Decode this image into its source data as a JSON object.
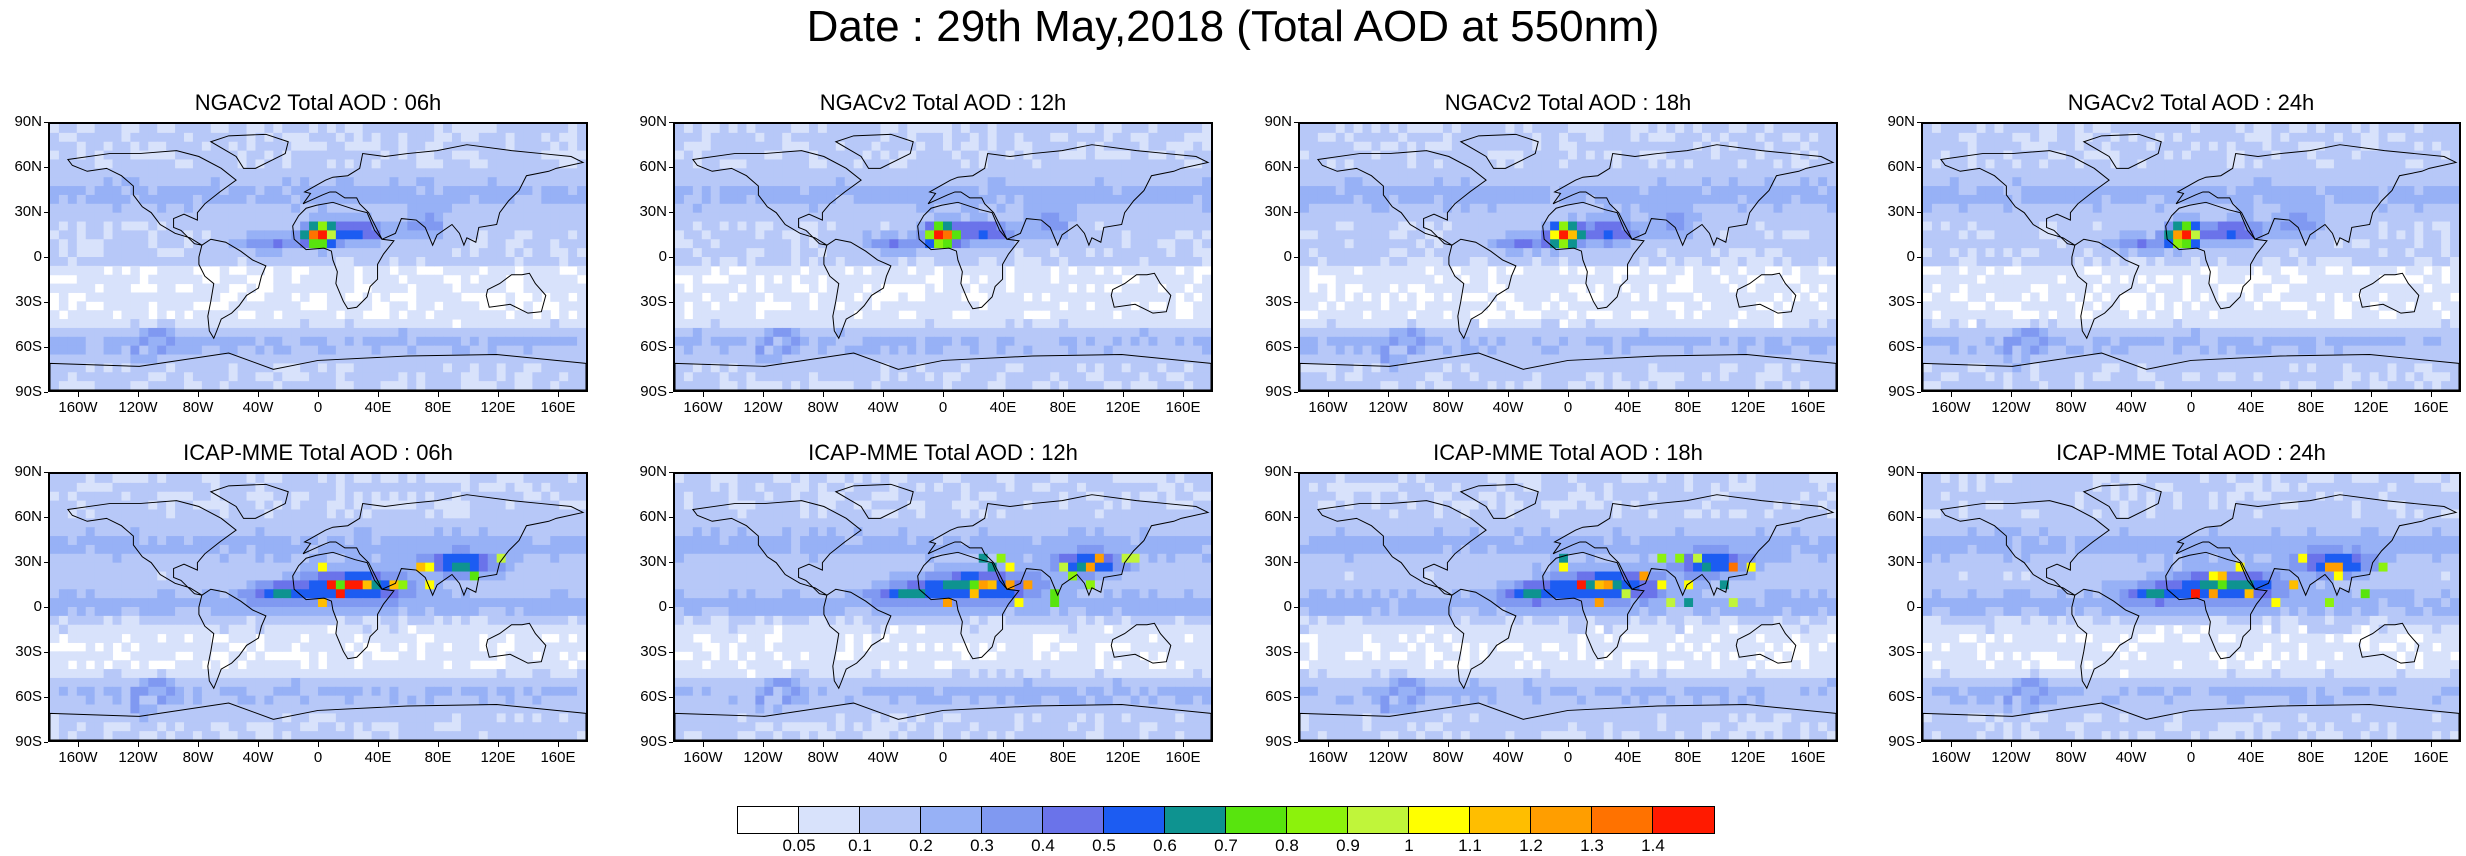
{
  "title": "Date : 29th May,2018 (Total AOD at 550nm)",
  "y_ticks": [
    "90N",
    "60N",
    "30N",
    "0",
    "30S",
    "60S",
    "90S"
  ],
  "x_ticks": [
    "160W",
    "120W",
    "80W",
    "40W",
    "0",
    "40E",
    "80E",
    "120E",
    "160E"
  ],
  "x_tick_lon": [
    -160,
    -120,
    -80,
    -40,
    0,
    40,
    80,
    120,
    160
  ],
  "y_tick_lat": [
    90,
    60,
    30,
    0,
    -30,
    -60,
    -90
  ],
  "panels": [
    {
      "title": "NGACv2 Total AOD : 06h",
      "model": "ngac"
    },
    {
      "title": "NGACv2 Total AOD : 12h",
      "model": "ngac"
    },
    {
      "title": "NGACv2 Total AOD : 18h",
      "model": "ngac"
    },
    {
      "title": "NGACv2 Total AOD : 24h",
      "model": "ngac"
    },
    {
      "title": "ICAP-MME Total AOD : 06h",
      "model": "icap"
    },
    {
      "title": "ICAP-MME Total AOD : 12h",
      "model": "icap"
    },
    {
      "title": "ICAP-MME Total AOD : 18h",
      "model": "icap"
    },
    {
      "title": "ICAP-MME Total AOD : 24h",
      "model": "icap"
    }
  ],
  "colorbar": {
    "colors": [
      "#ffffff",
      "#d8e2fb",
      "#b7c8f8",
      "#97b1f6",
      "#8099f1",
      "#6a73ea",
      "#1c5cf2",
      "#0e9390",
      "#58e40e",
      "#8cf20c",
      "#c0f53a",
      "#ffff00",
      "#ffbe00",
      "#ff9e00",
      "#ff7200",
      "#ff1a00"
    ],
    "labels": [
      "0.05",
      "0.1",
      "0.2",
      "0.3",
      "0.4",
      "0.5",
      "0.6",
      "0.7",
      "0.8",
      "0.9",
      "1",
      "1.1",
      "1.2",
      "1.3",
      "1.4"
    ]
  }
}
